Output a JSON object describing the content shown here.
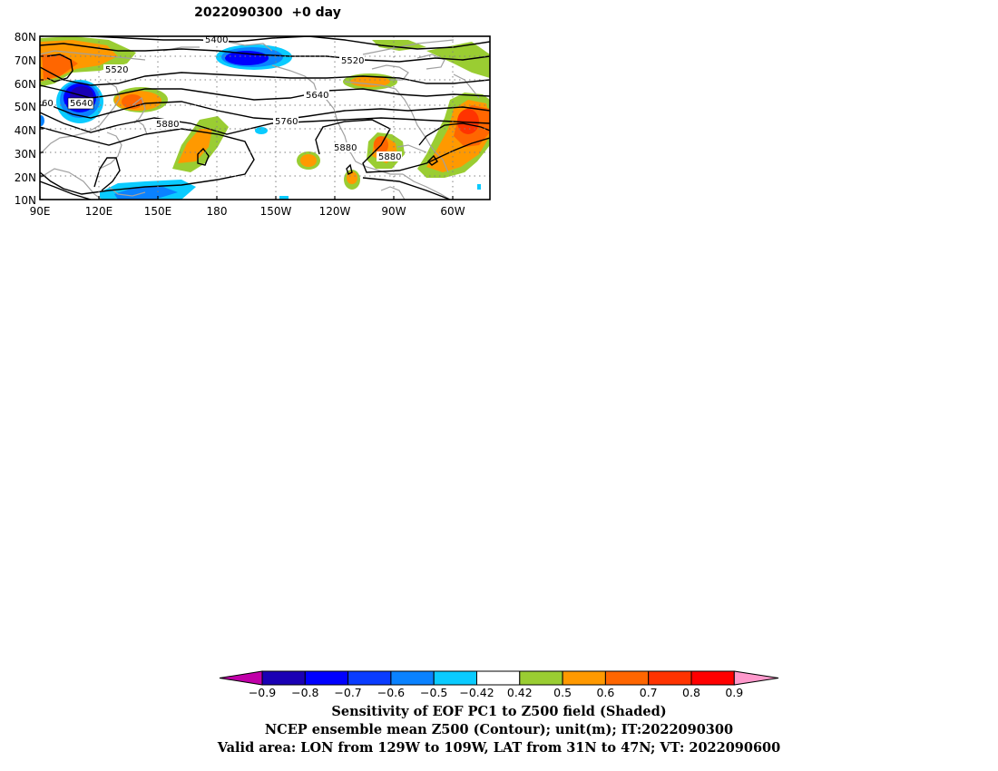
{
  "title": "2022090300  +0 day",
  "map": {
    "lat_ticks": [
      "80N",
      "70N",
      "60N",
      "50N",
      "40N",
      "30N",
      "20N",
      "10N"
    ],
    "lon_ticks": [
      "90E",
      "120E",
      "150E",
      "180",
      "150W",
      "120W",
      "90W",
      "60W"
    ],
    "contour_labels": [
      "5400",
      "5520",
      "5520",
      "5640",
      "5640",
      "5760",
      "5880",
      "5880",
      "5880",
      "60"
    ]
  },
  "colorbar": {
    "ticks": [
      "−0.9",
      "−0.8",
      "−0.7",
      "−0.6",
      "−0.5",
      "−0.42",
      "0.42",
      "0.5",
      "0.6",
      "0.7",
      "0.8",
      "0.9"
    ],
    "colors": [
      "#c000a8",
      "#1a00b4",
      "#0000ff",
      "#0a3cff",
      "#0a82ff",
      "#0acbff",
      "#ffffff",
      "#9acd32",
      "#ff9900",
      "#ff6600",
      "#ff3300",
      "#ff0000",
      "#ff99cc"
    ]
  },
  "captions": {
    "line1": "Sensitivity of EOF PC1 to Z500 field (Shaded)",
    "line2": "NCEP ensemble mean Z500 (Contour); unit(m); IT:2022090300",
    "line3": "Valid area: LON from 129W to 109W, LAT from 31N to 47N; VT: 2022090600"
  }
}
